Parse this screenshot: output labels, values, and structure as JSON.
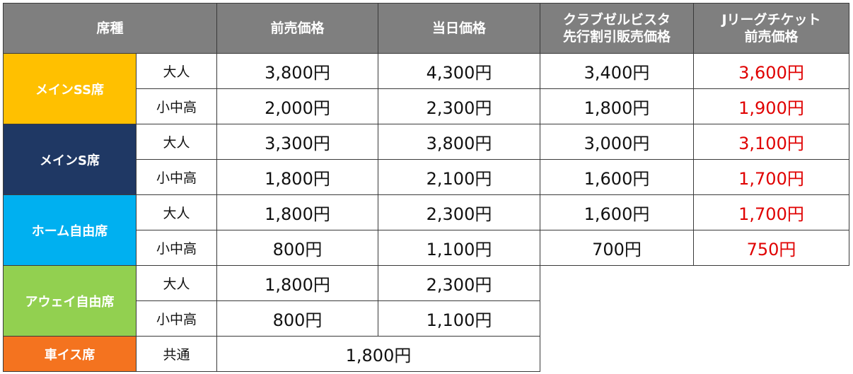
{
  "header": {
    "seat_type": "席種",
    "advance": "前売価格",
    "same_day": "当日価格",
    "club_line1": "クラブゼルビスタ",
    "club_line2": "先行割引販売価格",
    "jleague_line1": "Jリーグチケット",
    "jleague_line2": "前売価格"
  },
  "colors": {
    "header_bg": "#7f7f7f",
    "main_ss": "#ffc000",
    "main_s": "#1f3864",
    "home": "#00b0f0",
    "away": "#92d050",
    "wheelchair": "#f4731f",
    "jleague_price": "#e00000"
  },
  "rows": [
    {
      "category": "メインSS席",
      "tiers": [
        {
          "label": "大人",
          "advance": "3,800円",
          "same_day": "4,300円",
          "club": "3,400円",
          "jleague": "3,600円"
        },
        {
          "label": "小中高",
          "advance": "2,000円",
          "same_day": "2,300円",
          "club": "1,800円",
          "jleague": "1,900円"
        }
      ]
    },
    {
      "category": "メインS席",
      "tiers": [
        {
          "label": "大人",
          "advance": "3,300円",
          "same_day": "3,800円",
          "club": "3,000円",
          "jleague": "3,100円"
        },
        {
          "label": "小中高",
          "advance": "1,800円",
          "same_day": "2,100円",
          "club": "1,600円",
          "jleague": "1,700円"
        }
      ]
    },
    {
      "category": "ホーム自由席",
      "tiers": [
        {
          "label": "大人",
          "advance": "1,800円",
          "same_day": "2,300円",
          "club": "1,600円",
          "jleague": "1,700円"
        },
        {
          "label": "小中高",
          "advance": "800円",
          "same_day": "1,100円",
          "club": "700円",
          "jleague": "750円"
        }
      ]
    },
    {
      "category": "アウェイ自由席",
      "tiers": [
        {
          "label": "大人",
          "advance": "1,800円",
          "same_day": "2,300円"
        },
        {
          "label": "小中高",
          "advance": "800円",
          "same_day": "1,100円"
        }
      ]
    },
    {
      "category": "車イス席",
      "tiers": [
        {
          "label": "共通",
          "price": "1,800円"
        }
      ]
    }
  ]
}
